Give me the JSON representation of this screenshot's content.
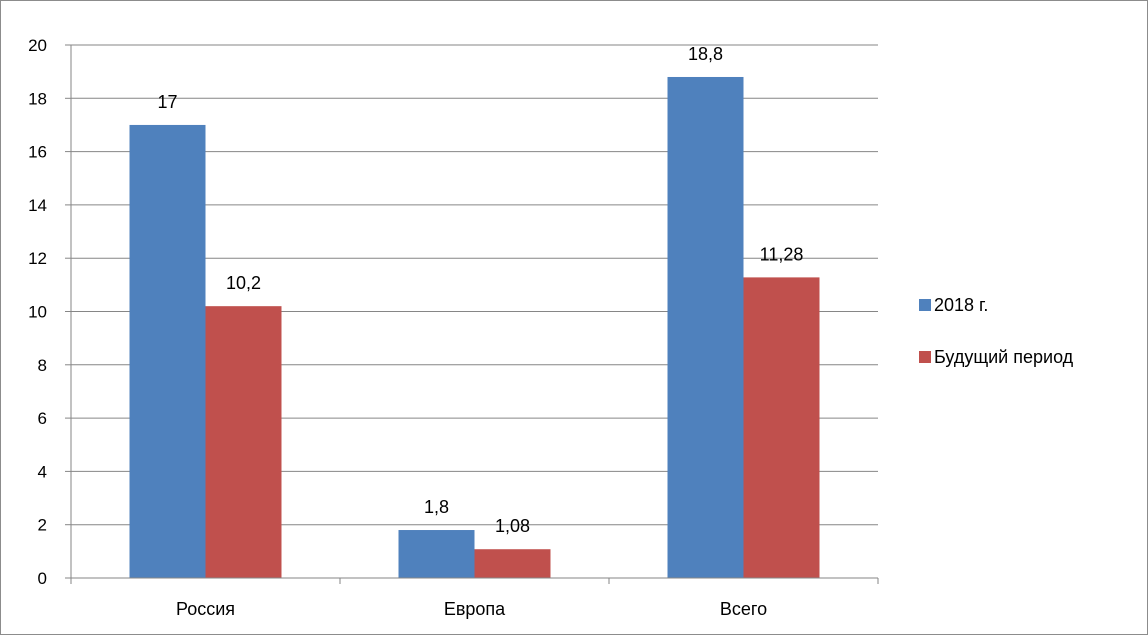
{
  "chart_data": {
    "type": "bar",
    "categories": [
      "Россия",
      "Европа",
      "Всего"
    ],
    "series": [
      {
        "name": "2018 г.",
        "values": [
          17,
          1.8,
          18.8
        ],
        "labels": [
          "17",
          "1,8",
          "18,8"
        ],
        "color": "#4F81BD"
      },
      {
        "name": "Будущий период",
        "values": [
          10.2,
          1.08,
          11.28
        ],
        "labels": [
          "10,2",
          "1,08",
          "11,28"
        ],
        "color": "#C0504D"
      }
    ],
    "ylim": [
      0,
      20
    ],
    "yticks": [
      0,
      2,
      4,
      6,
      8,
      10,
      12,
      14,
      16,
      18,
      20
    ],
    "grid": true,
    "legend_position": "right"
  }
}
